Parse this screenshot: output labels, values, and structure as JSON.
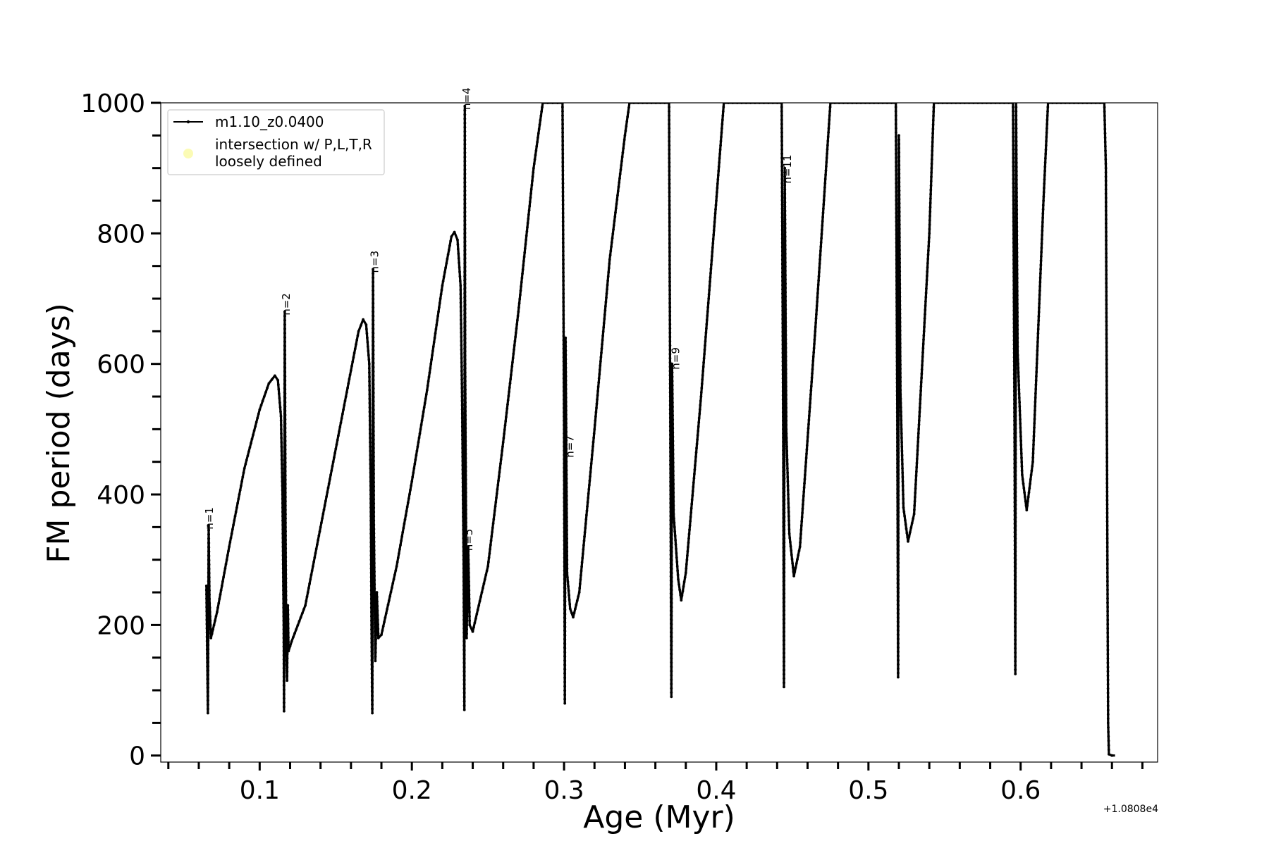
{
  "chart_data": {
    "type": "line",
    "title": "",
    "xlabel": "Age (Myr)",
    "ylabel": "FM period (days)",
    "x_offset_label": "+1.0808e4",
    "xlim": [
      0.035,
      0.69
    ],
    "ylim": [
      -10,
      1000
    ],
    "x_ticks": [
      0.1,
      0.2,
      0.3,
      0.4,
      0.5,
      0.6
    ],
    "x_tick_labels": [
      "0.1",
      "0.2",
      "0.3",
      "0.4",
      "0.5",
      "0.6"
    ],
    "y_ticks": [
      0,
      200,
      400,
      600,
      800,
      1000
    ],
    "y_tick_labels": [
      "0",
      "200",
      "400",
      "600",
      "800",
      "1000"
    ],
    "grid": false,
    "legend_position": "top-left",
    "legend": [
      {
        "label": "m1.10_z0.0400",
        "marker": "line-with-dots",
        "color": "#000000"
      },
      {
        "label": "intersection w/ P,L,T,R\nloosely defined",
        "marker": "circle",
        "color": "#fbfbb5"
      }
    ],
    "series": [
      {
        "name": "m1.10_z0.0400",
        "color": "#000000",
        "points": [
          [
            0.065,
            260
          ],
          [
            0.066,
            65
          ],
          [
            0.0665,
            352
          ],
          [
            0.067,
            240
          ],
          [
            0.068,
            180
          ],
          [
            0.072,
            220
          ],
          [
            0.08,
            320
          ],
          [
            0.09,
            440
          ],
          [
            0.1,
            530
          ],
          [
            0.106,
            570
          ],
          [
            0.11,
            582
          ],
          [
            0.112,
            575
          ],
          [
            0.114,
            520
          ],
          [
            0.115,
            400
          ],
          [
            0.1158,
            200
          ],
          [
            0.116,
            68
          ],
          [
            0.1165,
            680
          ],
          [
            0.117,
            350
          ],
          [
            0.1175,
            160
          ],
          [
            0.118,
            115
          ],
          [
            0.1185,
            230
          ],
          [
            0.119,
            160
          ],
          [
            0.121,
            175
          ],
          [
            0.13,
            230
          ],
          [
            0.14,
            350
          ],
          [
            0.15,
            470
          ],
          [
            0.16,
            590
          ],
          [
            0.165,
            650
          ],
          [
            0.168,
            668
          ],
          [
            0.17,
            660
          ],
          [
            0.172,
            600
          ],
          [
            0.173,
            400
          ],
          [
            0.1735,
            200
          ],
          [
            0.174,
            65
          ],
          [
            0.1745,
            745
          ],
          [
            0.175,
            360
          ],
          [
            0.176,
            145
          ],
          [
            0.177,
            250
          ],
          [
            0.178,
            180
          ],
          [
            0.18,
            185
          ],
          [
            0.19,
            290
          ],
          [
            0.2,
            420
          ],
          [
            0.21,
            560
          ],
          [
            0.22,
            720
          ],
          [
            0.226,
            795
          ],
          [
            0.228,
            802
          ],
          [
            0.23,
            790
          ],
          [
            0.232,
            720
          ],
          [
            0.233,
            550
          ],
          [
            0.234,
            300
          ],
          [
            0.2345,
            70
          ],
          [
            0.2348,
            995
          ],
          [
            0.235,
            600
          ],
          [
            0.236,
            180
          ],
          [
            0.237,
            320
          ],
          [
            0.238,
            200
          ],
          [
            0.24,
            190
          ],
          [
            0.25,
            290
          ],
          [
            0.26,
            480
          ],
          [
            0.27,
            680
          ],
          [
            0.28,
            900
          ],
          [
            0.286,
            1000
          ],
          [
            0.299,
            1000
          ],
          [
            0.3,
            500
          ],
          [
            0.3005,
            80
          ],
          [
            0.301,
            640
          ],
          [
            0.302,
            280
          ],
          [
            0.304,
            225
          ],
          [
            0.306,
            212
          ],
          [
            0.31,
            250
          ],
          [
            0.32,
            500
          ],
          [
            0.33,
            760
          ],
          [
            0.34,
            950
          ],
          [
            0.343,
            1000
          ],
          [
            0.369,
            1000
          ],
          [
            0.37,
            400
          ],
          [
            0.3705,
            90
          ],
          [
            0.371,
            600
          ],
          [
            0.372,
            370
          ],
          [
            0.375,
            270
          ],
          [
            0.377,
            238
          ],
          [
            0.38,
            280
          ],
          [
            0.39,
            550
          ],
          [
            0.4,
            850
          ],
          [
            0.405,
            1000
          ],
          [
            0.443,
            1000
          ],
          [
            0.444,
            500
          ],
          [
            0.4445,
            105
          ],
          [
            0.445,
            900
          ],
          [
            0.446,
            500
          ],
          [
            0.448,
            340
          ],
          [
            0.451,
            275
          ],
          [
            0.455,
            320
          ],
          [
            0.465,
            650
          ],
          [
            0.475,
            1000
          ],
          [
            0.518,
            1000
          ],
          [
            0.519,
            500
          ],
          [
            0.5195,
            120
          ],
          [
            0.52,
            950
          ],
          [
            0.521,
            560
          ],
          [
            0.523,
            380
          ],
          [
            0.526,
            328
          ],
          [
            0.53,
            370
          ],
          [
            0.54,
            800
          ],
          [
            0.543,
            1000
          ],
          [
            0.595,
            1000
          ],
          [
            0.596,
            500
          ],
          [
            0.5965,
            125
          ],
          [
            0.597,
            1000
          ],
          [
            0.598,
            620
          ],
          [
            0.601,
            430
          ],
          [
            0.604,
            376
          ],
          [
            0.608,
            450
          ],
          [
            0.615,
            850
          ],
          [
            0.618,
            1000
          ],
          [
            0.655,
            1000
          ],
          [
            0.656,
            900
          ],
          [
            0.6565,
            600
          ],
          [
            0.657,
            300
          ],
          [
            0.6575,
            50
          ],
          [
            0.658,
            2
          ],
          [
            0.66,
            0
          ],
          [
            0.662,
            0
          ]
        ]
      }
    ],
    "annotations": [
      {
        "text": "n=1",
        "x": 0.067,
        "y": 355
      },
      {
        "text": "n=2",
        "x": 0.1175,
        "y": 683
      },
      {
        "text": "n=3",
        "x": 0.1755,
        "y": 748
      },
      {
        "text": "n=4",
        "x": 0.236,
        "y": 998
      },
      {
        "text": "n=5",
        "x": 0.2375,
        "y": 322
      },
      {
        "text": "n=7",
        "x": 0.304,
        "y": 465
      },
      {
        "text": "n=9",
        "x": 0.3735,
        "y": 600
      },
      {
        "text": "n=11",
        "x": 0.4468,
        "y": 885
      }
    ]
  }
}
